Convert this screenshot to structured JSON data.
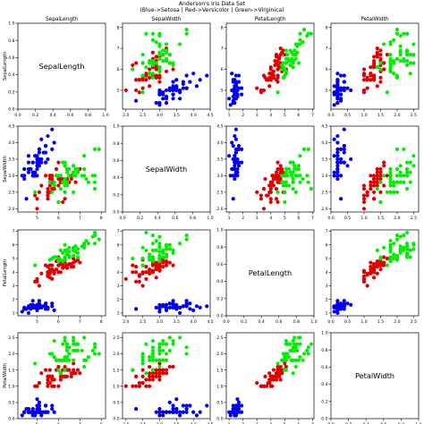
{
  "figure": {
    "title_line1": "Anderson's Iris Data Set",
    "title_line2": "(Blue->Setosa | Red->Versicolor | Green->Virginica)"
  },
  "colors": {
    "setosa": "#0000ee",
    "versicolor": "#e00000",
    "virginica": "#00ee00"
  },
  "chart_data": {
    "type": "scatter",
    "layout": "4x4 scatter matrix; diagonal cells show the variable name instead of data",
    "variables": [
      "SepalLength",
      "SepalWidth",
      "PetalLength",
      "PetalWidth"
    ],
    "column_titles": [
      "SepalLength",
      "SepalWidth",
      "PetalLength",
      "PetalWidth"
    ],
    "row_labels": [
      "SepalLength",
      "SepalWidth",
      "PetalLength",
      "PetalWidth"
    ],
    "diagonal_axis": {
      "ticks": [
        "0.0",
        "0.2",
        "0.4",
        "0.6",
        "0.8",
        "1.0"
      ],
      "range": [
        0,
        1
      ]
    },
    "axes": {
      "SepalLength": {
        "range": [
          4.1,
          8.2
        ],
        "ticks": [
          "5",
          "6",
          "7",
          "8"
        ],
        "tick_values": [
          5,
          6,
          7,
          8
        ]
      },
      "SepalWidth": {
        "range": [
          1.9,
          4.5
        ],
        "ticks": [
          "2.0",
          "2.5",
          "3.0",
          "3.5",
          "4.0",
          "4.5"
        ],
        "tick_values": [
          2.0,
          2.5,
          3.0,
          3.5,
          4.0,
          4.5
        ]
      },
      "PetalLength": {
        "range": [
          0.8,
          7.1
        ],
        "ticks": [
          "1",
          "2",
          "3",
          "4",
          "5",
          "6",
          "7"
        ],
        "tick_values": [
          1,
          2,
          3,
          4,
          5,
          6,
          7
        ]
      },
      "PetalWidth": {
        "range": [
          0.0,
          2.65
        ],
        "ticks": [
          "0.0",
          "0.5",
          "1.0",
          "1.5",
          "2.0",
          "2.5"
        ],
        "tick_values": [
          0.0,
          0.5,
          1.0,
          1.5,
          2.0,
          2.5
        ]
      }
    },
    "series": [
      {
        "species": "setosa",
        "color": "#0000ee",
        "points": [
          [
            5.1,
            3.5,
            1.4,
            0.2
          ],
          [
            4.9,
            3.0,
            1.4,
            0.2
          ],
          [
            4.7,
            3.2,
            1.3,
            0.2
          ],
          [
            4.6,
            3.1,
            1.5,
            0.2
          ],
          [
            5.0,
            3.6,
            1.4,
            0.2
          ],
          [
            5.4,
            3.9,
            1.7,
            0.4
          ],
          [
            4.6,
            3.4,
            1.4,
            0.3
          ],
          [
            5.0,
            3.4,
            1.5,
            0.2
          ],
          [
            4.4,
            2.9,
            1.4,
            0.2
          ],
          [
            4.9,
            3.1,
            1.5,
            0.1
          ],
          [
            5.4,
            3.7,
            1.5,
            0.2
          ],
          [
            4.8,
            3.4,
            1.6,
            0.2
          ],
          [
            4.8,
            3.0,
            1.4,
            0.1
          ],
          [
            4.3,
            3.0,
            1.1,
            0.1
          ],
          [
            5.8,
            4.0,
            1.2,
            0.2
          ],
          [
            5.7,
            4.4,
            1.5,
            0.4
          ],
          [
            5.4,
            3.9,
            1.3,
            0.4
          ],
          [
            5.1,
            3.5,
            1.4,
            0.3
          ],
          [
            5.7,
            3.8,
            1.7,
            0.3
          ],
          [
            5.1,
            3.8,
            1.5,
            0.3
          ],
          [
            5.4,
            3.4,
            1.7,
            0.2
          ],
          [
            5.1,
            3.7,
            1.5,
            0.4
          ],
          [
            4.6,
            3.6,
            1.0,
            0.2
          ],
          [
            5.1,
            3.3,
            1.7,
            0.5
          ],
          [
            4.8,
            3.4,
            1.9,
            0.2
          ],
          [
            5.0,
            3.0,
            1.6,
            0.2
          ],
          [
            5.0,
            3.4,
            1.6,
            0.4
          ],
          [
            5.2,
            3.5,
            1.5,
            0.2
          ],
          [
            5.2,
            3.4,
            1.4,
            0.2
          ],
          [
            4.7,
            3.2,
            1.6,
            0.2
          ],
          [
            4.8,
            3.1,
            1.6,
            0.2
          ],
          [
            5.4,
            3.4,
            1.5,
            0.4
          ],
          [
            5.2,
            4.1,
            1.5,
            0.1
          ],
          [
            5.5,
            4.2,
            1.4,
            0.2
          ],
          [
            4.9,
            3.1,
            1.5,
            0.2
          ],
          [
            5.0,
            3.2,
            1.2,
            0.2
          ],
          [
            5.5,
            3.5,
            1.3,
            0.2
          ],
          [
            4.9,
            3.6,
            1.4,
            0.1
          ],
          [
            4.4,
            3.0,
            1.3,
            0.2
          ],
          [
            5.1,
            3.4,
            1.5,
            0.2
          ],
          [
            5.0,
            3.5,
            1.3,
            0.3
          ],
          [
            4.5,
            2.3,
            1.3,
            0.3
          ],
          [
            4.4,
            3.2,
            1.3,
            0.2
          ],
          [
            5.0,
            3.5,
            1.6,
            0.6
          ],
          [
            5.1,
            3.8,
            1.9,
            0.4
          ],
          [
            4.8,
            3.0,
            1.4,
            0.3
          ],
          [
            5.1,
            3.8,
            1.6,
            0.2
          ],
          [
            4.6,
            3.2,
            1.4,
            0.2
          ],
          [
            5.3,
            3.7,
            1.5,
            0.2
          ],
          [
            5.0,
            3.3,
            1.4,
            0.2
          ]
        ]
      },
      {
        "species": "versicolor",
        "color": "#e00000",
        "points": [
          [
            7.0,
            3.2,
            4.7,
            1.4
          ],
          [
            6.4,
            3.2,
            4.5,
            1.5
          ],
          [
            6.9,
            3.1,
            4.9,
            1.5
          ],
          [
            5.5,
            2.3,
            4.0,
            1.3
          ],
          [
            6.5,
            2.8,
            4.6,
            1.5
          ],
          [
            5.7,
            2.8,
            4.5,
            1.3
          ],
          [
            6.3,
            3.3,
            4.7,
            1.6
          ],
          [
            4.9,
            2.4,
            3.3,
            1.0
          ],
          [
            6.6,
            2.9,
            4.6,
            1.3
          ],
          [
            5.2,
            2.7,
            3.9,
            1.4
          ],
          [
            5.0,
            2.0,
            3.5,
            1.0
          ],
          [
            5.9,
            3.0,
            4.2,
            1.5
          ],
          [
            6.0,
            2.2,
            4.0,
            1.0
          ],
          [
            6.1,
            2.9,
            4.7,
            1.4
          ],
          [
            5.6,
            2.9,
            3.6,
            1.3
          ],
          [
            6.7,
            3.1,
            4.4,
            1.4
          ],
          [
            5.6,
            3.0,
            4.5,
            1.5
          ],
          [
            5.8,
            2.7,
            4.1,
            1.0
          ],
          [
            6.2,
            2.2,
            4.5,
            1.5
          ],
          [
            5.6,
            2.5,
            3.9,
            1.1
          ],
          [
            5.9,
            3.2,
            4.8,
            1.8
          ],
          [
            6.1,
            2.8,
            4.0,
            1.3
          ],
          [
            6.3,
            2.5,
            4.9,
            1.5
          ],
          [
            6.1,
            2.8,
            4.7,
            1.2
          ],
          [
            6.4,
            2.9,
            4.3,
            1.3
          ],
          [
            6.6,
            3.0,
            4.4,
            1.4
          ],
          [
            6.8,
            2.8,
            4.8,
            1.4
          ],
          [
            6.7,
            3.0,
            5.0,
            1.7
          ],
          [
            6.0,
            2.9,
            4.5,
            1.5
          ],
          [
            5.7,
            2.6,
            3.5,
            1.0
          ],
          [
            5.5,
            2.4,
            3.8,
            1.1
          ],
          [
            5.5,
            2.4,
            3.7,
            1.0
          ],
          [
            5.8,
            2.7,
            3.9,
            1.2
          ],
          [
            6.0,
            2.7,
            5.1,
            1.6
          ],
          [
            5.4,
            3.0,
            4.5,
            1.5
          ],
          [
            6.0,
            3.4,
            4.5,
            1.6
          ],
          [
            6.7,
            3.1,
            4.7,
            1.5
          ],
          [
            6.3,
            2.3,
            4.4,
            1.3
          ],
          [
            5.6,
            3.0,
            4.1,
            1.3
          ],
          [
            5.5,
            2.5,
            4.0,
            1.3
          ],
          [
            5.5,
            2.6,
            4.4,
            1.2
          ],
          [
            6.1,
            3.0,
            4.6,
            1.4
          ],
          [
            5.8,
            2.6,
            4.0,
            1.2
          ],
          [
            5.0,
            2.3,
            3.3,
            1.0
          ],
          [
            5.6,
            2.7,
            4.2,
            1.3
          ],
          [
            5.7,
            3.0,
            4.2,
            1.2
          ],
          [
            5.7,
            2.9,
            4.2,
            1.3
          ],
          [
            6.2,
            2.9,
            4.3,
            1.3
          ],
          [
            5.1,
            2.5,
            3.0,
            1.1
          ],
          [
            5.7,
            2.8,
            4.1,
            1.3
          ]
        ]
      },
      {
        "species": "virginica",
        "color": "#00ee00",
        "points": [
          [
            6.3,
            3.3,
            6.0,
            2.5
          ],
          [
            5.8,
            2.7,
            5.1,
            1.9
          ],
          [
            7.1,
            3.0,
            5.9,
            2.1
          ],
          [
            6.3,
            2.9,
            5.6,
            1.8
          ],
          [
            6.5,
            3.0,
            5.8,
            2.2
          ],
          [
            7.6,
            3.0,
            6.6,
            2.1
          ],
          [
            4.9,
            2.5,
            4.5,
            1.7
          ],
          [
            7.3,
            2.9,
            6.3,
            1.8
          ],
          [
            6.7,
            2.5,
            5.8,
            1.8
          ],
          [
            7.2,
            3.6,
            6.1,
            2.5
          ],
          [
            6.5,
            3.2,
            5.1,
            2.0
          ],
          [
            6.4,
            2.7,
            5.3,
            1.9
          ],
          [
            6.8,
            3.0,
            5.5,
            2.1
          ],
          [
            5.7,
            2.5,
            5.0,
            2.0
          ],
          [
            5.8,
            2.8,
            5.1,
            2.4
          ],
          [
            6.4,
            3.2,
            5.3,
            2.3
          ],
          [
            6.5,
            3.0,
            5.5,
            1.8
          ],
          [
            7.7,
            3.8,
            6.7,
            2.2
          ],
          [
            7.7,
            2.6,
            6.9,
            2.3
          ],
          [
            6.0,
            2.2,
            5.0,
            1.5
          ],
          [
            6.9,
            3.2,
            5.7,
            2.3
          ],
          [
            5.6,
            2.8,
            4.9,
            2.0
          ],
          [
            7.7,
            2.8,
            6.7,
            2.0
          ],
          [
            6.3,
            2.7,
            4.9,
            1.8
          ],
          [
            6.7,
            3.3,
            5.7,
            2.1
          ],
          [
            7.2,
            3.2,
            6.0,
            1.8
          ],
          [
            6.2,
            2.8,
            4.8,
            1.8
          ],
          [
            6.1,
            3.0,
            4.9,
            1.8
          ],
          [
            6.4,
            2.8,
            5.6,
            2.1
          ],
          [
            7.2,
            3.0,
            5.8,
            1.6
          ],
          [
            7.4,
            2.8,
            6.1,
            1.9
          ],
          [
            7.9,
            3.8,
            6.4,
            2.0
          ],
          [
            6.4,
            2.8,
            5.6,
            2.2
          ],
          [
            6.3,
            2.8,
            5.1,
            1.5
          ],
          [
            6.1,
            2.6,
            5.6,
            1.4
          ],
          [
            7.7,
            3.0,
            6.1,
            2.3
          ],
          [
            6.3,
            3.4,
            5.6,
            2.4
          ],
          [
            6.4,
            3.1,
            5.5,
            1.8
          ],
          [
            6.0,
            3.0,
            4.8,
            1.8
          ],
          [
            6.9,
            3.1,
            5.4,
            2.1
          ],
          [
            6.7,
            3.1,
            5.6,
            2.4
          ],
          [
            6.9,
            3.1,
            5.1,
            2.3
          ],
          [
            5.8,
            2.7,
            5.1,
            1.9
          ],
          [
            6.8,
            3.2,
            5.9,
            2.3
          ],
          [
            6.7,
            3.3,
            5.7,
            2.5
          ],
          [
            6.7,
            3.0,
            5.2,
            2.3
          ],
          [
            6.3,
            2.5,
            5.0,
            1.9
          ],
          [
            6.5,
            3.0,
            5.2,
            2.0
          ],
          [
            6.2,
            3.4,
            5.4,
            2.3
          ],
          [
            5.9,
            3.0,
            5.1,
            1.8
          ]
        ]
      }
    ]
  }
}
